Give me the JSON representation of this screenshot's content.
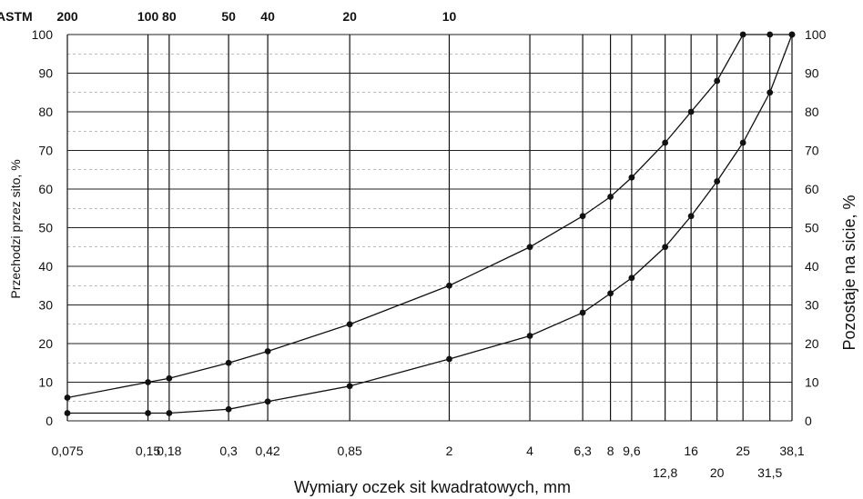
{
  "chart_data": {
    "type": "line",
    "xlabel": "Wymiary oczek sit kwadratowych, mm",
    "ylabel_left": "Przechodzi przez sito, %",
    "ylabel_right": "Pozostaje na sicie, %",
    "astm_label": "ASTM",
    "ylim": [
      0,
      100
    ],
    "x_scale": "log",
    "grid": true,
    "y_ticks_left": [
      0,
      10,
      20,
      30,
      40,
      50,
      60,
      70,
      80,
      90,
      100
    ],
    "y_ticks_right": [
      100,
      90,
      80,
      70,
      60,
      50,
      40,
      30,
      20,
      10,
      0
    ],
    "sieve_sizes": [
      {
        "mm": 0.075,
        "label": "0,075",
        "row": 1,
        "astm": "200"
      },
      {
        "mm": 0.15,
        "label": "0,15",
        "row": 1,
        "astm": "100"
      },
      {
        "mm": 0.18,
        "label": "0,18",
        "row": 1,
        "astm": "80"
      },
      {
        "mm": 0.3,
        "label": "0,3",
        "row": 1,
        "astm": "50"
      },
      {
        "mm": 0.42,
        "label": "0,42",
        "row": 1,
        "astm": "40"
      },
      {
        "mm": 0.85,
        "label": "0,85",
        "row": 1,
        "astm": "20"
      },
      {
        "mm": 2,
        "label": "2",
        "row": 1,
        "astm": "10"
      },
      {
        "mm": 4,
        "label": "4",
        "row": 1,
        "astm": ""
      },
      {
        "mm": 6.3,
        "label": "6,3",
        "row": 1,
        "astm": ""
      },
      {
        "mm": 8,
        "label": "8",
        "row": 1,
        "astm": ""
      },
      {
        "mm": 9.6,
        "label": "9,6",
        "row": 1,
        "astm": ""
      },
      {
        "mm": 12.8,
        "label": "12,8",
        "row": 2,
        "astm": ""
      },
      {
        "mm": 16,
        "label": "16",
        "row": 1,
        "astm": ""
      },
      {
        "mm": 20,
        "label": "20",
        "row": 2,
        "astm": ""
      },
      {
        "mm": 25,
        "label": "25",
        "row": 1,
        "astm": ""
      },
      {
        "mm": 31.5,
        "label": "31,5",
        "row": 2,
        "astm": ""
      },
      {
        "mm": 38.1,
        "label": "38,1",
        "row": 1,
        "astm": ""
      }
    ],
    "series": [
      {
        "x": [
          0.075,
          0.15,
          0.18,
          0.3,
          0.42,
          0.85,
          2,
          4,
          6.3,
          8,
          9.6,
          12.8,
          16,
          20,
          25,
          31.5,
          38.1
        ],
        "values": [
          6,
          10,
          11,
          15,
          18,
          25,
          35,
          45,
          53,
          58,
          63,
          72,
          80,
          88,
          100,
          100,
          100
        ]
      },
      {
        "x": [
          0.075,
          0.15,
          0.18,
          0.3,
          0.42,
          0.85,
          2,
          4,
          6.3,
          8,
          9.6,
          12.8,
          16,
          20,
          25,
          31.5,
          38.1
        ],
        "values": [
          2,
          2,
          2,
          3,
          5,
          9,
          16,
          22,
          28,
          33,
          37,
          45,
          53,
          62,
          72,
          85,
          100
        ]
      }
    ]
  }
}
